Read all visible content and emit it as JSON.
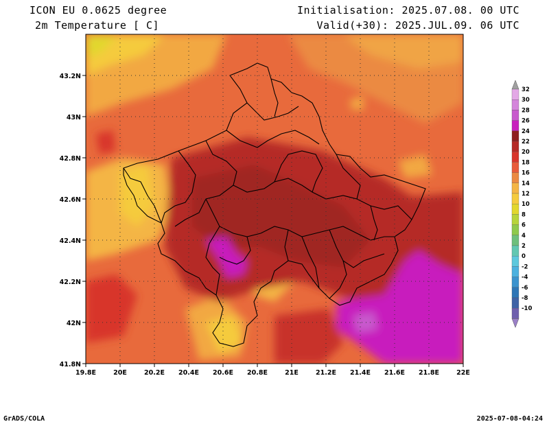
{
  "header": {
    "model": "ICON EU 0.0625 degree",
    "variable": "2m Temperature [ C]",
    "init": "Initialisation: 2025.07.08. 00 UTC",
    "valid": "Valid(+30): 2025.JUL.09. 06 UTC"
  },
  "footer": {
    "software": "GrADS/COLA",
    "timestamp": "2025-07-08-04:24"
  },
  "map": {
    "lat_ticks": [
      "43.2N",
      "43N",
      "42.8N",
      "42.6N",
      "42.4N",
      "42.2N",
      "42N",
      "41.8N"
    ],
    "lon_ticks": [
      "19.8E",
      "20E",
      "20.2E",
      "20.4E",
      "20.6E",
      "20.8E",
      "21E",
      "21.2E",
      "21.4E",
      "21.6E",
      "21.8E",
      "22E"
    ],
    "lon_range": [
      19.8,
      22.0
    ],
    "lat_range": [
      41.8,
      43.4
    ],
    "grid": "dotted"
  },
  "colorbar": {
    "labels": [
      "32",
      "30",
      "28",
      "26",
      "24",
      "22",
      "20",
      "18",
      "16",
      "14",
      "12",
      "10",
      "8",
      "6",
      "4",
      "2",
      "0",
      "-2",
      "-4",
      "-6",
      "-8",
      "-10"
    ],
    "colors": [
      "#e3a8e6",
      "#d485db",
      "#c85acd",
      "#c81fbd",
      "#8e1f1f",
      "#b52a26",
      "#d8352b",
      "#e85b3a",
      "#eb8a42",
      "#f4b545",
      "#f5cb3e",
      "#e2d72d",
      "#b7d43a",
      "#8fc94c",
      "#6ebf7c",
      "#62c7b2",
      "#5dc8dd",
      "#4cb1df",
      "#3b93ce",
      "#2e76b6",
      "#3f63a6",
      "#6f5fae"
    ]
  }
}
